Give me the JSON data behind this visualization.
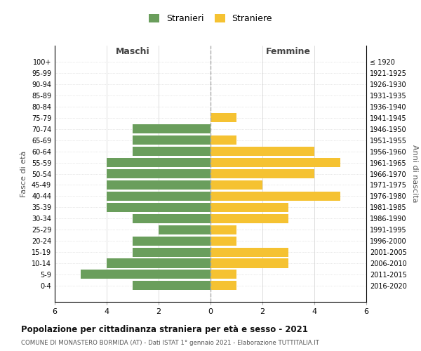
{
  "age_groups": [
    "100+",
    "95-99",
    "90-94",
    "85-89",
    "80-84",
    "75-79",
    "70-74",
    "65-69",
    "60-64",
    "55-59",
    "50-54",
    "45-49",
    "40-44",
    "35-39",
    "30-34",
    "25-29",
    "20-24",
    "15-19",
    "10-14",
    "5-9",
    "0-4"
  ],
  "birth_years": [
    "≤ 1920",
    "1921-1925",
    "1926-1930",
    "1931-1935",
    "1936-1940",
    "1941-1945",
    "1946-1950",
    "1951-1955",
    "1956-1960",
    "1961-1965",
    "1966-1970",
    "1971-1975",
    "1976-1980",
    "1981-1985",
    "1986-1990",
    "1991-1995",
    "1996-2000",
    "2001-2005",
    "2006-2010",
    "2011-2015",
    "2016-2020"
  ],
  "males": [
    0,
    0,
    0,
    0,
    0,
    0,
    3,
    3,
    3,
    4,
    4,
    4,
    4,
    4,
    3,
    2,
    3,
    3,
    4,
    5,
    3
  ],
  "females": [
    0,
    0,
    0,
    0,
    0,
    1,
    0,
    1,
    4,
    5,
    4,
    2,
    5,
    3,
    3,
    1,
    1,
    3,
    3,
    1,
    1
  ],
  "male_color": "#6a9e5c",
  "female_color": "#f5c232",
  "background_color": "#ffffff",
  "grid_color": "#d0d0d0",
  "title": "Popolazione per cittadinanza straniera per età e sesso - 2021",
  "subtitle": "COMUNE DI MONASTERO BORMIDA (AT) - Dati ISTAT 1° gennaio 2021 - Elaborazione TUTTITALIA.IT",
  "xlabel_left": "Maschi",
  "xlabel_right": "Femmine",
  "ylabel_left": "Fasce di età",
  "ylabel_right": "Anni di nascita",
  "legend_male": "Stranieri",
  "legend_female": "Straniere",
  "xlim": 6,
  "bar_height": 0.82
}
